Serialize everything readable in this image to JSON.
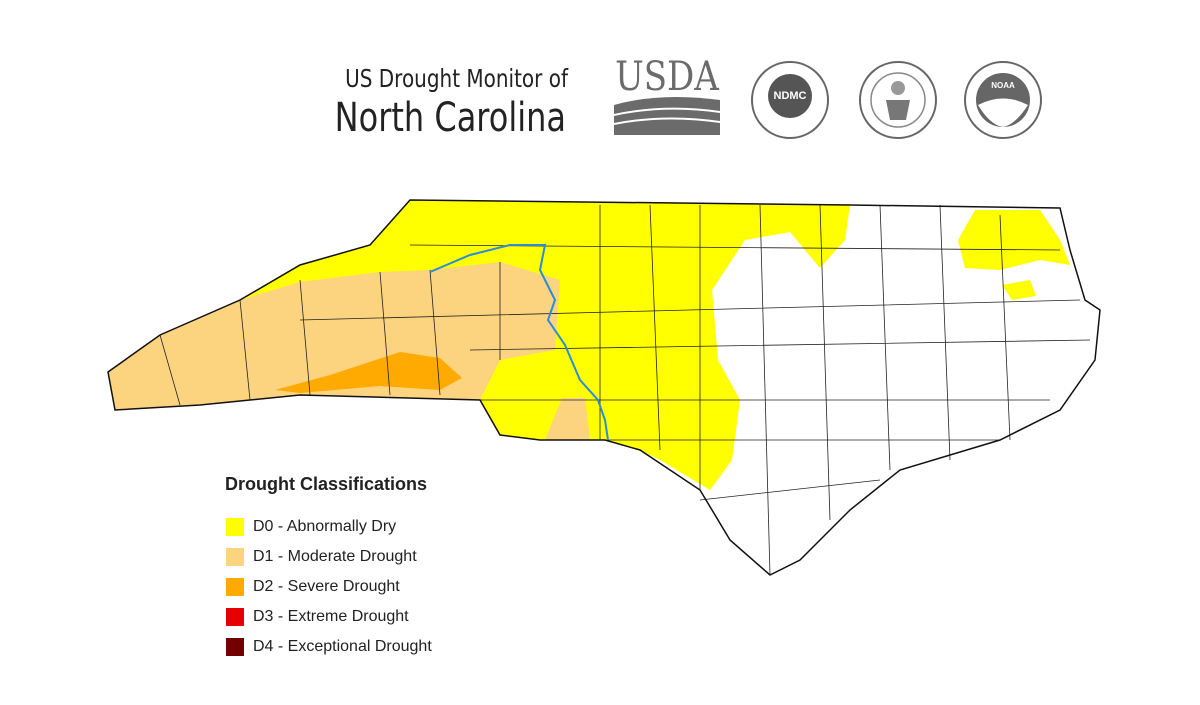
{
  "header": {
    "subtitle": "US Drought Monitor of",
    "title": "North Carolina"
  },
  "logos": [
    {
      "label": "USDA"
    },
    {
      "label": "NDMC"
    },
    {
      "label": "NOAA"
    }
  ],
  "legend": {
    "title": "Drought Classifications",
    "items": [
      {
        "label": "D0 - Abnormally Dry",
        "color": "#ffff00"
      },
      {
        "label": "D1 - Moderate Drought",
        "color": "#fcd37f"
      },
      {
        "label": "D2 - Severe Drought",
        "color": "#ffaa00"
      },
      {
        "label": "D3 - Extreme Drought",
        "color": "#e60000"
      },
      {
        "label": "D4 - Exceptional Drought",
        "color": "#730000"
      }
    ]
  }
}
